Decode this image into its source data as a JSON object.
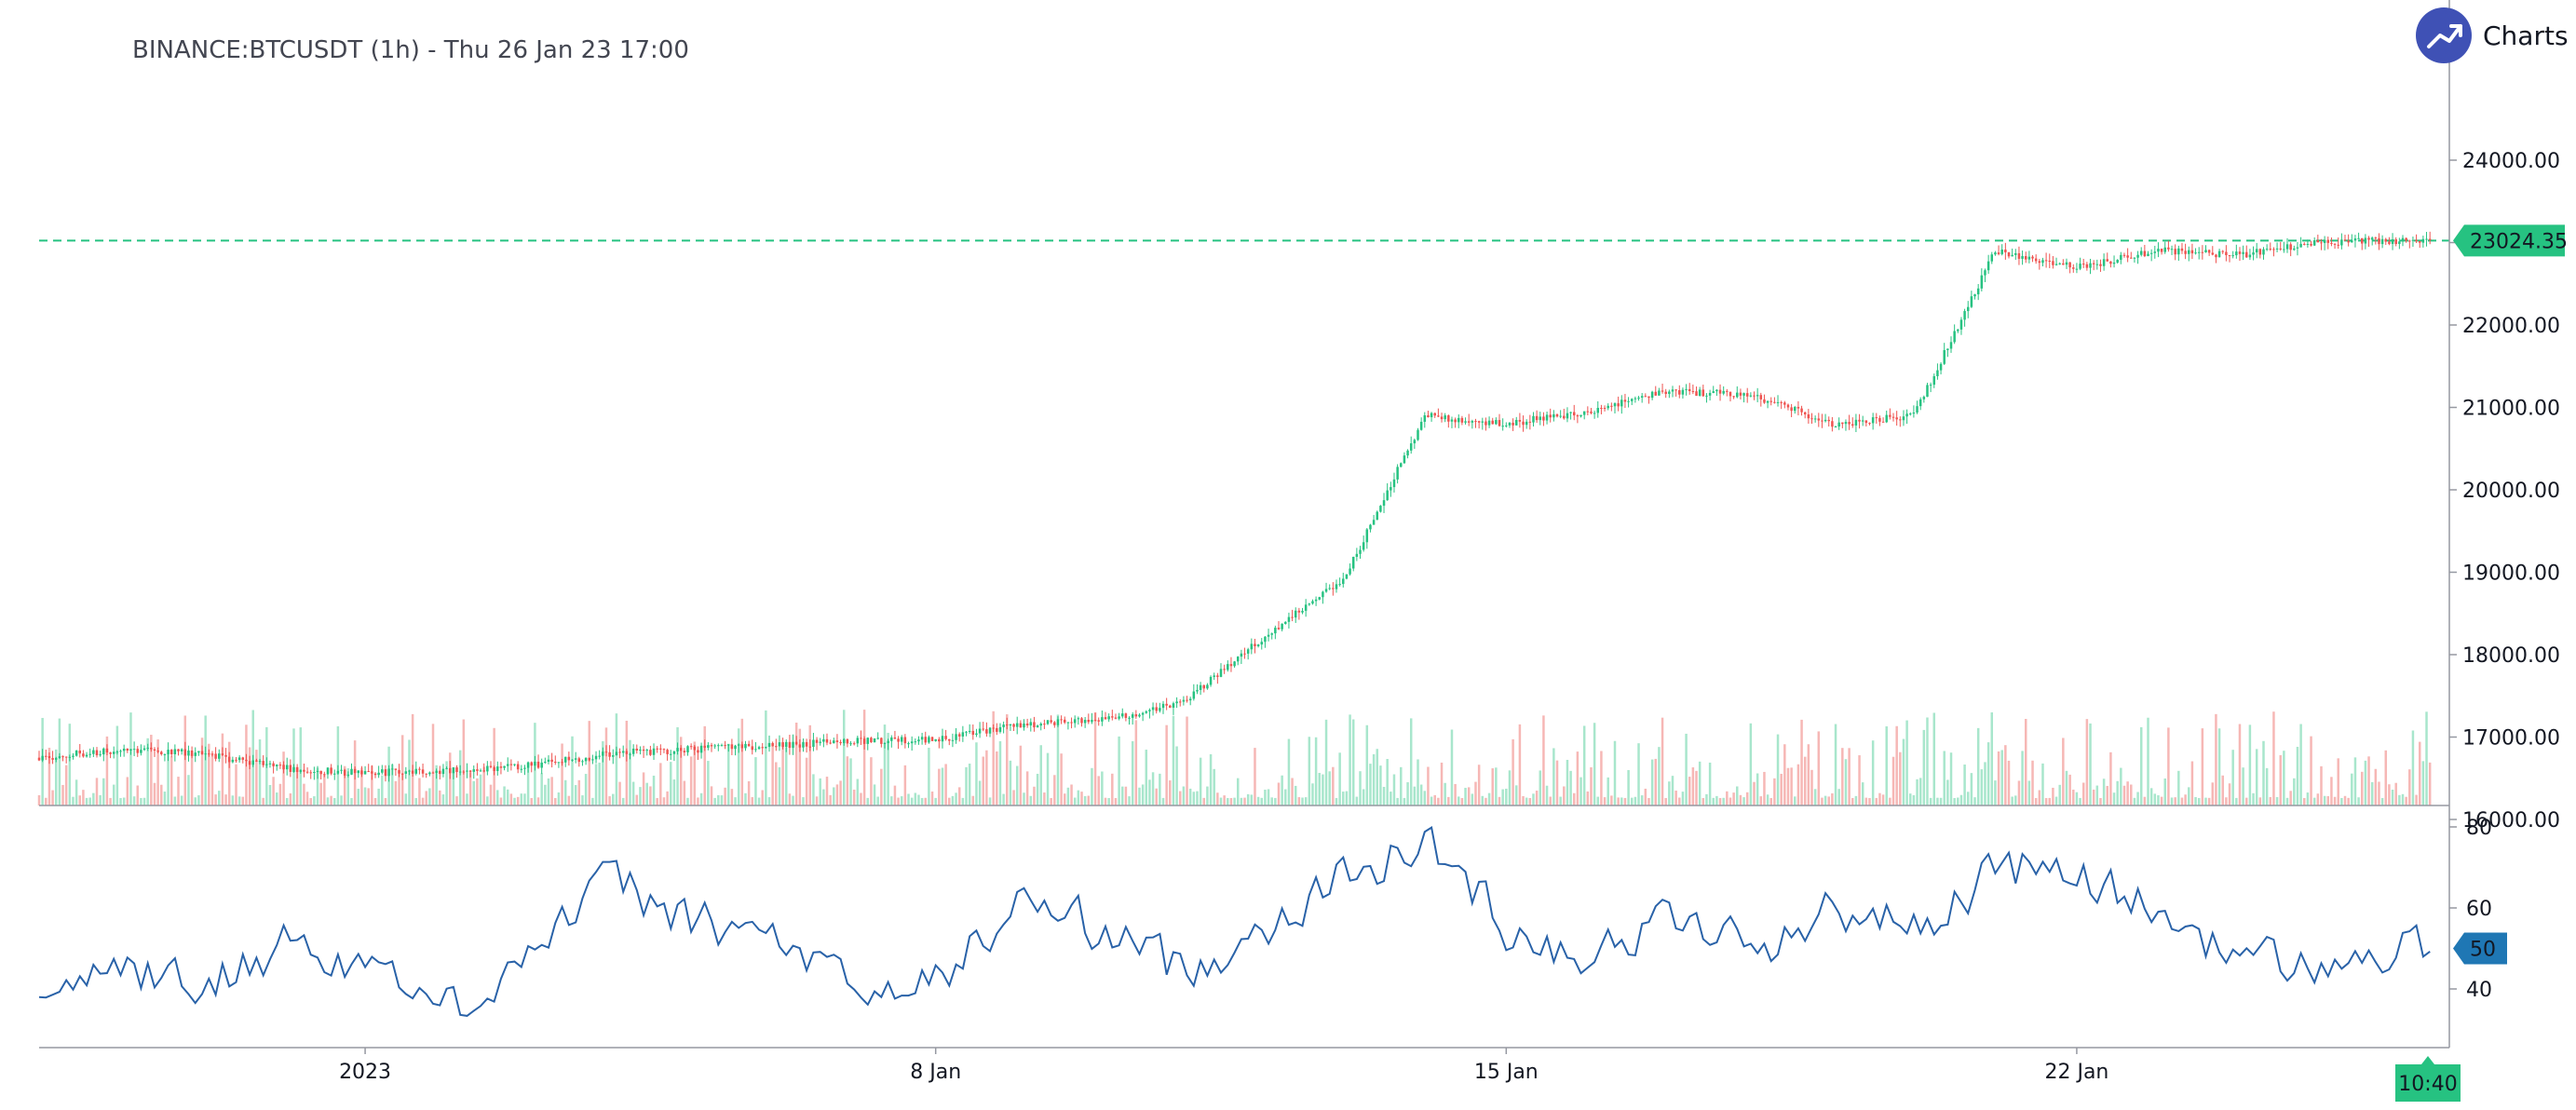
{
  "header": {
    "title": "BINANCE:BTCUSDT (1h) - Thu 26 Jan 23 17:00"
  },
  "brand": {
    "text": "Charts p",
    "icon": "trend-up-icon",
    "color": "#3f51b5"
  },
  "colors": {
    "up": "#26c281",
    "down": "#ef5350",
    "vol_up": "#a8e6cc",
    "vol_down": "#f6b7b5",
    "rsi": "#2962a8",
    "rsi_badge": "#1f77b4",
    "price_badge": "#26c281"
  },
  "chart_data": [
    {
      "type": "candlestick",
      "title": "BINANCE:BTCUSDT (1h) - Thu 26 Jan 23 17:00",
      "x_range": [
        "2022-12-28",
        "2023-01-26"
      ],
      "x_ticks": [
        "2023",
        "8 Jan",
        "15 Jan",
        "22 Jan"
      ],
      "y_ticks": [
        "16000.00",
        "17000.00",
        "18000.00",
        "19000.00",
        "20000.00",
        "21000.00",
        "22000.00",
        "23000.00",
        "24000.00"
      ],
      "ylim": [
        15600,
        24200
      ],
      "last_price": 23024.35,
      "last_price_label": "23024.35",
      "price_line": "dashed",
      "cursor_time_label": "10:40",
      "price_path": [
        [
          "2022-12-28",
          16750
        ],
        [
          "2022-12-29",
          16850
        ],
        [
          "2022-12-30",
          16800
        ],
        [
          "2022-12-31",
          16620
        ],
        [
          "2023-01-01",
          16560
        ],
        [
          "2023-01-02",
          16600
        ],
        [
          "2023-01-03",
          16650
        ],
        [
          "2023-01-04",
          16800
        ],
        [
          "2023-01-05",
          16850
        ],
        [
          "2023-01-06",
          16900
        ],
        [
          "2023-01-07",
          16950
        ],
        [
          "2023-01-08",
          16960
        ],
        [
          "2023-01-09",
          17150
        ],
        [
          "2023-01-10",
          17200
        ],
        [
          "2023-01-11",
          17400
        ],
        [
          "2023-01-12",
          18200
        ],
        [
          "2023-01-13",
          18900
        ],
        [
          "2023-01-14",
          20900
        ],
        [
          "2023-01-15",
          20800
        ],
        [
          "2023-01-16",
          20950
        ],
        [
          "2023-01-17",
          21200
        ],
        [
          "2023-01-18",
          21150
        ],
        [
          "2023-01-19",
          20800
        ],
        [
          "2023-01-20",
          20900
        ],
        [
          "2023-01-21",
          22900
        ],
        [
          "2023-01-22",
          22700
        ],
        [
          "2023-01-23",
          22900
        ],
        [
          "2023-01-24",
          22850
        ],
        [
          "2023-01-25",
          23000
        ],
        [
          "2023-01-26",
          23024.35
        ]
      ],
      "volume": "bars along the bottom of the price pane, shaded by candle direction"
    },
    {
      "type": "line",
      "series": [
        {
          "name": "",
          "kind": "RSI"
        }
      ],
      "y_ticks": [
        "40",
        "60",
        "80"
      ],
      "ylim": [
        25,
        85
      ],
      "last_value": 50,
      "last_value_label": "50",
      "path": [
        [
          "2022-12-28",
          42
        ],
        [
          "2022-12-29",
          45
        ],
        [
          "2022-12-30",
          40
        ],
        [
          "2022-12-31",
          52
        ],
        [
          "2023-01-01",
          46
        ],
        [
          "2023-01-02",
          35
        ],
        [
          "2023-01-03",
          50
        ],
        [
          "2023-01-04",
          67
        ],
        [
          "2023-01-05",
          56
        ],
        [
          "2023-01-06",
          53
        ],
        [
          "2023-01-07",
          38
        ],
        [
          "2023-01-08",
          42
        ],
        [
          "2023-01-09",
          62
        ],
        [
          "2023-01-10",
          55
        ],
        [
          "2023-01-11",
          44
        ],
        [
          "2023-01-12",
          56
        ],
        [
          "2023-01-13",
          68
        ],
        [
          "2023-01-14",
          76
        ],
        [
          "2023-01-15",
          55
        ],
        [
          "2023-01-16",
          48
        ],
        [
          "2023-01-17",
          58
        ],
        [
          "2023-01-18",
          50
        ],
        [
          "2023-01-19",
          60
        ],
        [
          "2023-01-20",
          55
        ],
        [
          "2023-01-21",
          70
        ],
        [
          "2023-01-22",
          68
        ],
        [
          "2023-01-23",
          58
        ],
        [
          "2023-01-24",
          48
        ],
        [
          "2023-01-25",
          45
        ],
        [
          "2023-01-26",
          50
        ]
      ]
    }
  ]
}
